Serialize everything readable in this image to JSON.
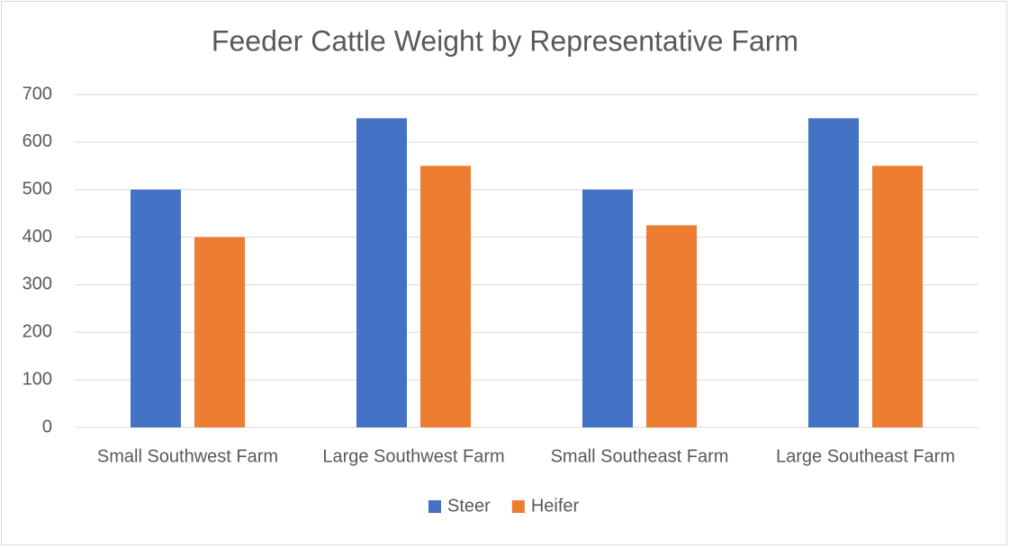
{
  "chart_data": {
    "type": "bar",
    "title": "Feeder Cattle Weight by Representative Farm",
    "categories": [
      "Small Southwest Farm",
      "Large Southwest Farm",
      "Small Southeast Farm",
      "Large Southeast Farm"
    ],
    "series": [
      {
        "name": "Steer",
        "color": "#4472c4",
        "values": [
          500,
          650,
          500,
          650
        ]
      },
      {
        "name": "Heifer",
        "color": "#ed7d31",
        "values": [
          400,
          550,
          425,
          550
        ]
      }
    ],
    "ylim": [
      0,
      700
    ],
    "yticks": [
      0,
      100,
      200,
      300,
      400,
      500,
      600,
      700
    ],
    "grid": true,
    "legend": "bottom"
  }
}
